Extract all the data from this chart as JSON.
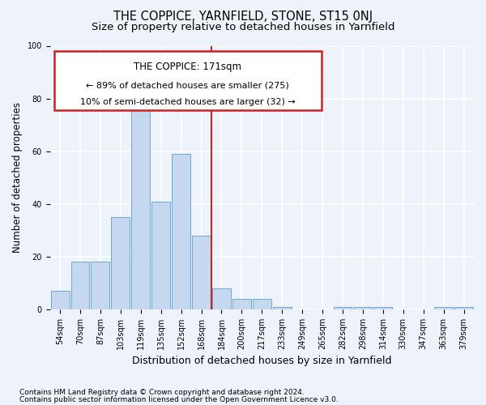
{
  "title": "THE COPPICE, YARNFIELD, STONE, ST15 0NJ",
  "subtitle": "Size of property relative to detached houses in Yarnfield",
  "xlabel": "Distribution of detached houses by size in Yarnfield",
  "ylabel": "Number of detached properties",
  "categories": [
    "54sqm",
    "70sqm",
    "87sqm",
    "103sqm",
    "119sqm",
    "135sqm",
    "152sqm",
    "168sqm",
    "184sqm",
    "200sqm",
    "217sqm",
    "233sqm",
    "249sqm",
    "265sqm",
    "282sqm",
    "298sqm",
    "314sqm",
    "330sqm",
    "347sqm",
    "363sqm",
    "379sqm"
  ],
  "values": [
    7,
    18,
    18,
    35,
    84,
    41,
    59,
    28,
    8,
    4,
    4,
    1,
    0,
    0,
    1,
    1,
    1,
    0,
    0,
    1,
    1
  ],
  "bar_color": "#c5d8f0",
  "bar_edge_color": "#6aaad4",
  "property_line_x": 7.5,
  "annotation_title": "THE COPPICE: 171sqm",
  "annotation_line1": "← 89% of detached houses are smaller (275)",
  "annotation_line2": "10% of semi-detached houses are larger (32) →",
  "annotation_box_color": "#ffffff",
  "annotation_box_edge_color": "#cc2222",
  "vline_color": "#cc2222",
  "ylim": [
    0,
    100
  ],
  "yticks": [
    0,
    20,
    40,
    60,
    80,
    100
  ],
  "footnote1": "Contains HM Land Registry data © Crown copyright and database right 2024.",
  "footnote2": "Contains public sector information licensed under the Open Government Licence v3.0.",
  "background_color": "#eef2fa",
  "grid_color": "#ffffff",
  "title_fontsize": 10.5,
  "subtitle_fontsize": 9.5,
  "ylabel_fontsize": 8.5,
  "xlabel_fontsize": 9,
  "tick_fontsize": 7,
  "footnote_fontsize": 6.5
}
